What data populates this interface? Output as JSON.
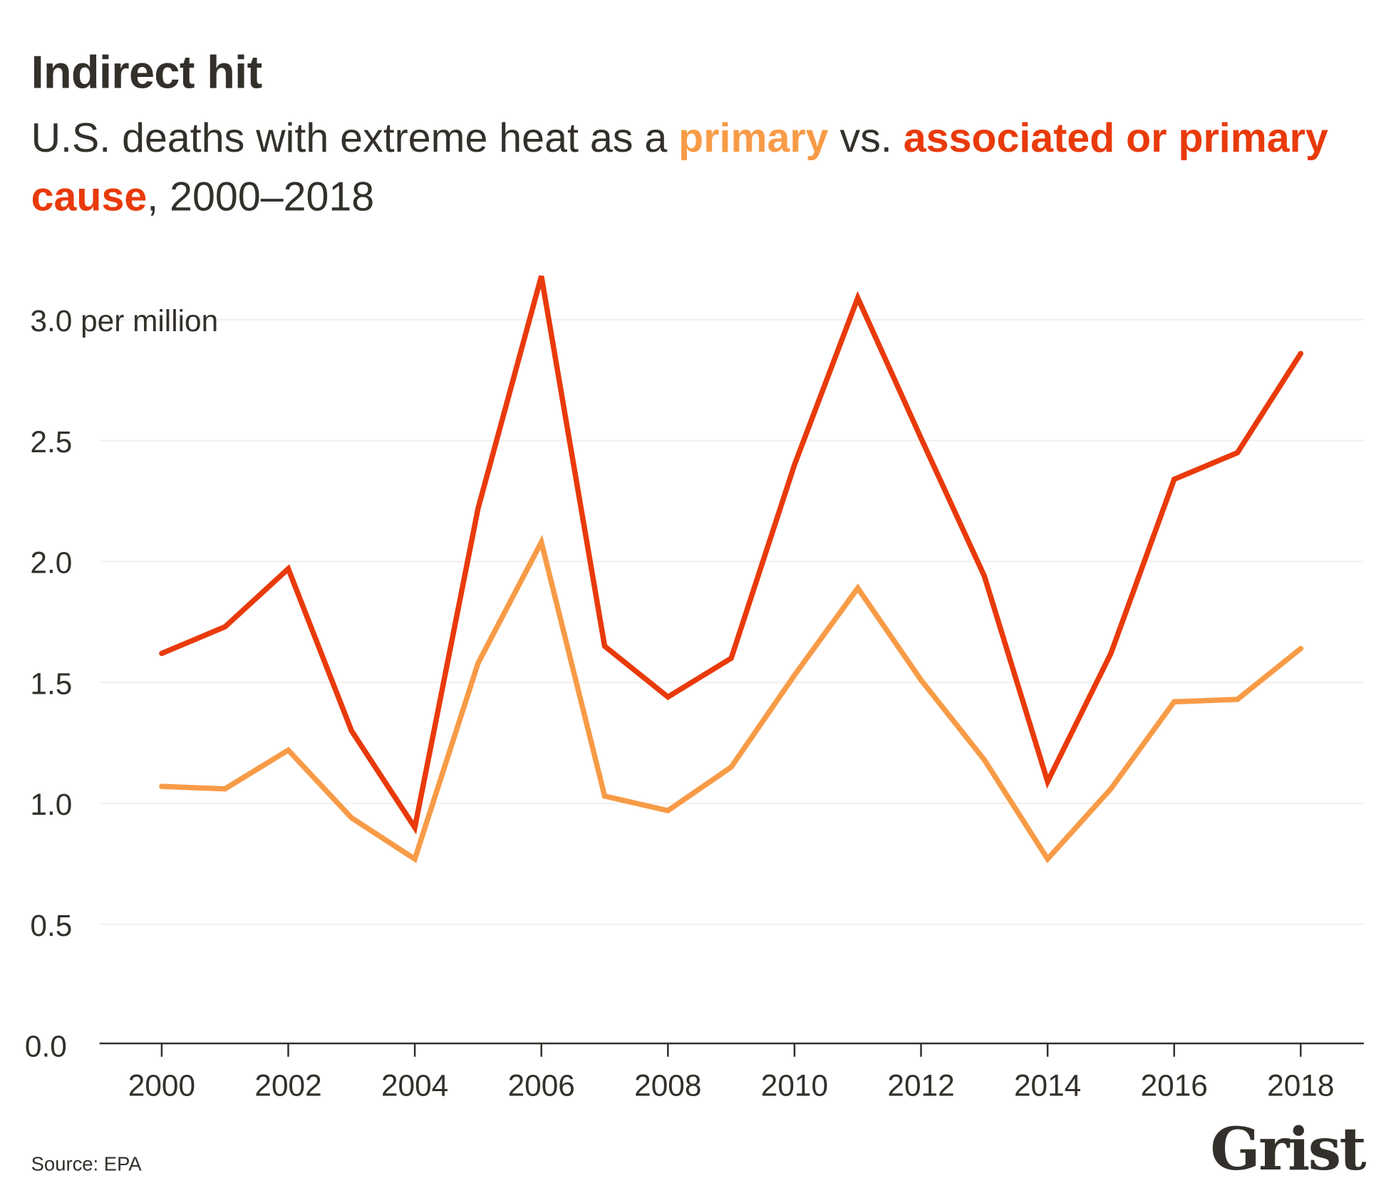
{
  "header": {
    "title": "Indirect hit",
    "subtitle_pre": "U.S. deaths with extreme heat as a ",
    "subtitle_primary": "primary",
    "subtitle_mid": " vs. ",
    "subtitle_assoc": "associated or primary cause",
    "subtitle_post": ", 2000–2018"
  },
  "footer": {
    "source": "Source: EPA",
    "logo": "Grist"
  },
  "chart_data": {
    "type": "line",
    "title": "Indirect hit",
    "subtitle": "U.S. deaths with extreme heat as a primary vs. associated or primary cause, 2000–2018",
    "ylabel": "per million",
    "ylim": [
      0,
      3.0
    ],
    "yticks": [
      "0.0",
      "0.5",
      "1.0",
      "1.5",
      "2.0",
      "2.5",
      "3.0 per million"
    ],
    "ytick_values": [
      0,
      0.5,
      1.0,
      1.5,
      2.0,
      2.5,
      3.0
    ],
    "xticks": [
      "2000",
      "2002",
      "2004",
      "2006",
      "2008",
      "2010",
      "2012",
      "2014",
      "2016",
      "2018"
    ],
    "x": [
      2000,
      2001,
      2002,
      2003,
      2004,
      2005,
      2006,
      2007,
      2008,
      2009,
      2010,
      2011,
      2012,
      2013,
      2014,
      2015,
      2016,
      2017,
      2018
    ],
    "series": [
      {
        "name": "primary",
        "color": "#f89b47",
        "values": [
          1.07,
          1.06,
          1.22,
          0.94,
          0.77,
          1.58,
          2.08,
          1.03,
          0.97,
          1.15,
          1.53,
          1.89,
          1.51,
          1.18,
          0.77,
          1.06,
          1.42,
          1.43,
          1.64
        ]
      },
      {
        "name": "associated or primary cause",
        "color": "#e93a0b",
        "values": [
          1.62,
          1.73,
          1.97,
          1.3,
          0.9,
          2.22,
          3.18,
          1.65,
          1.44,
          1.6,
          2.4,
          3.09,
          2.51,
          1.94,
          1.09,
          1.62,
          2.34,
          2.45,
          2.86
        ]
      }
    ],
    "grid": true
  }
}
